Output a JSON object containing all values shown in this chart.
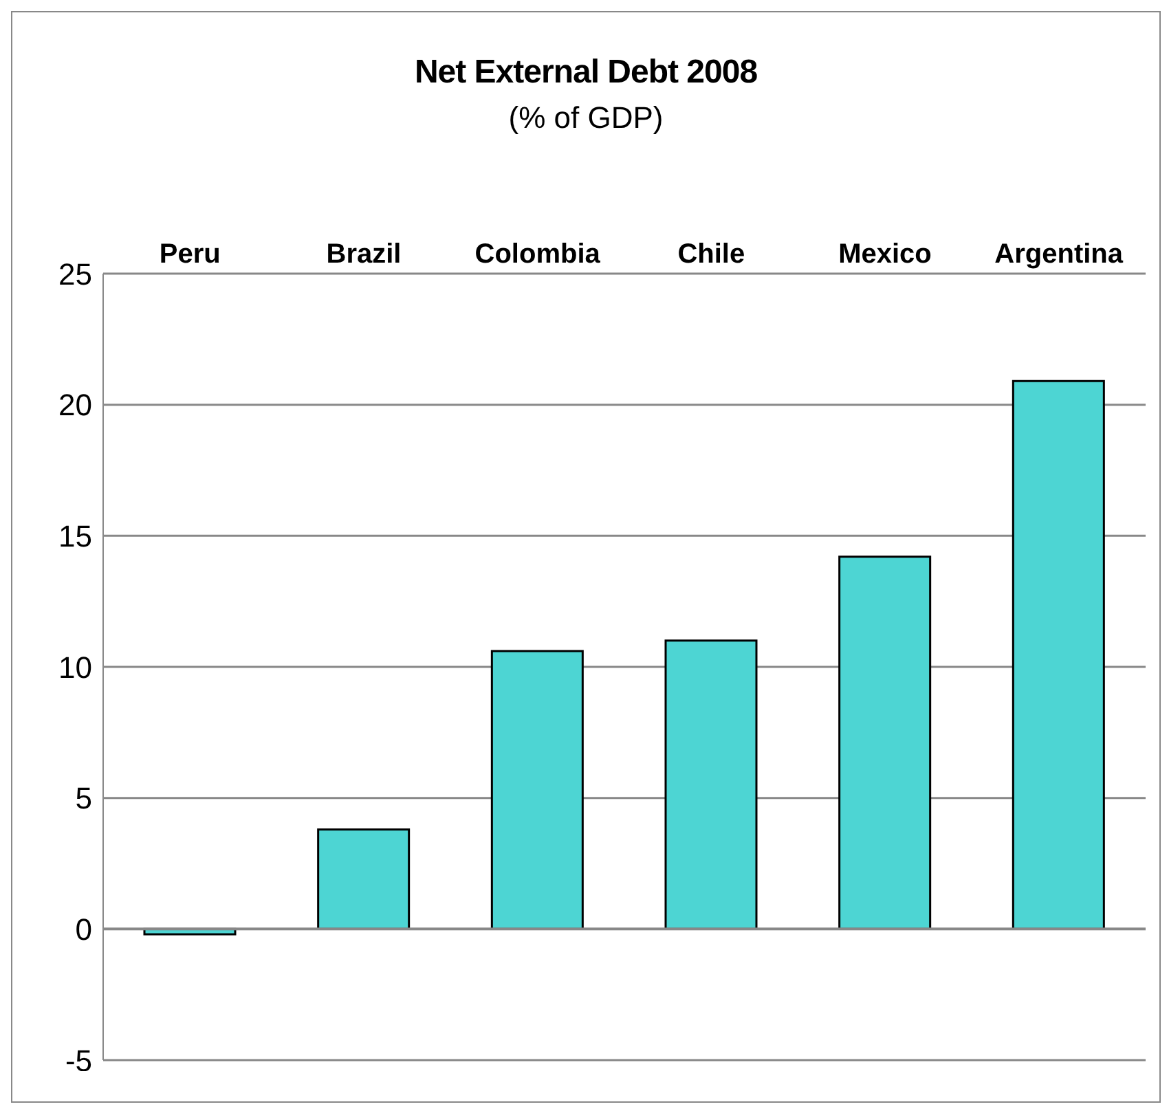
{
  "chart_data": {
    "type": "bar",
    "title": "Net External Debt 2008",
    "subtitle": "(% of GDP)",
    "categories": [
      "Peru",
      "Brazil",
      "Colombia",
      "Chile",
      "Mexico",
      "Argentina"
    ],
    "values": [
      -0.2,
      3.8,
      10.6,
      11.0,
      14.2,
      20.9
    ],
    "color": "#4dd5d3",
    "ylim": [
      -5,
      25
    ],
    "yticks": [
      -5,
      0,
      5,
      10,
      15,
      20,
      25
    ],
    "grid": "y"
  }
}
